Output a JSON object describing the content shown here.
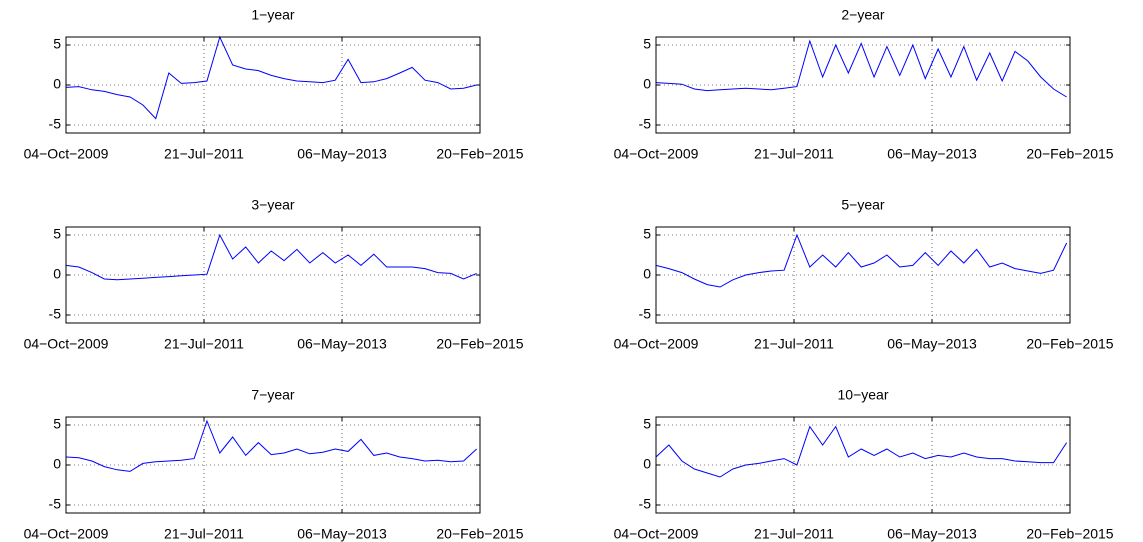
{
  "chart_data": [
    {
      "type": "line",
      "title": "1−year",
      "color": "#0000ff",
      "grid": true,
      "xlim": [
        "2009-10-04",
        "2015-02-20"
      ],
      "ylim": [
        -6,
        6
      ],
      "yticks": [
        -5,
        0,
        5
      ],
      "xticks": [
        {
          "value": "2009-10-04",
          "label": "04−Oct−2009"
        },
        {
          "value": "2011-07-21",
          "label": "21−Jul−2011"
        },
        {
          "value": "2013-05-06",
          "label": "06−May−2013"
        },
        {
          "value": "2015-02-20",
          "label": "20−Feb−2015"
        }
      ],
      "x": [
        "2009-10-04",
        "2009-12-04",
        "2010-02-04",
        "2010-04-04",
        "2010-06-04",
        "2010-08-04",
        "2010-10-04",
        "2010-12-04",
        "2011-02-04",
        "2011-04-04",
        "2011-06-04",
        "2011-08-04",
        "2011-10-04",
        "2011-12-04",
        "2012-02-04",
        "2012-04-04",
        "2012-06-04",
        "2012-08-04",
        "2012-10-04",
        "2012-12-04",
        "2013-02-04",
        "2013-04-04",
        "2013-06-04",
        "2013-08-04",
        "2013-10-04",
        "2013-12-04",
        "2014-02-04",
        "2014-04-04",
        "2014-06-04",
        "2014-08-04",
        "2014-10-04",
        "2014-12-04",
        "2015-02-04"
      ],
      "values": [
        -0.3,
        -0.2,
        -0.6,
        -0.8,
        -1.2,
        -1.5,
        -2.5,
        -4.2,
        1.5,
        0.2,
        0.3,
        0.5,
        6,
        2.5,
        2,
        1.8,
        1.2,
        0.8,
        0.5,
        0.4,
        0.3,
        0.6,
        3.2,
        0.3,
        0.4,
        0.8,
        1.5,
        2.2,
        0.6,
        0.3,
        -0.5,
        -0.4,
        0
      ]
    },
    {
      "type": "line",
      "title": "2−year",
      "color": "#0000ff",
      "grid": true,
      "xlim": [
        "2009-10-04",
        "2015-02-20"
      ],
      "ylim": [
        -6,
        6
      ],
      "yticks": [
        -5,
        0,
        5
      ],
      "xticks": [
        {
          "value": "2009-10-04",
          "label": "04−Oct−2009"
        },
        {
          "value": "2011-07-21",
          "label": "21−Jul−2011"
        },
        {
          "value": "2013-05-06",
          "label": "06−May−2013"
        },
        {
          "value": "2015-02-20",
          "label": "20−Feb−2015"
        }
      ],
      "x": [
        "2009-10-04",
        "2009-12-04",
        "2010-02-04",
        "2010-04-04",
        "2010-06-04",
        "2010-08-04",
        "2010-10-04",
        "2010-12-04",
        "2011-02-04",
        "2011-04-04",
        "2011-06-04",
        "2011-08-04",
        "2011-10-04",
        "2011-12-04",
        "2012-02-04",
        "2012-04-04",
        "2012-06-04",
        "2012-08-04",
        "2012-10-04",
        "2012-12-04",
        "2013-02-04",
        "2013-04-04",
        "2013-06-04",
        "2013-08-04",
        "2013-10-04",
        "2013-12-04",
        "2014-02-04",
        "2014-04-04",
        "2014-06-04",
        "2014-08-04",
        "2014-10-04",
        "2014-12-04",
        "2015-02-04"
      ],
      "values": [
        0.3,
        0.2,
        0.1,
        -0.5,
        -0.7,
        -0.6,
        -0.5,
        -0.4,
        -0.5,
        -0.6,
        -0.4,
        -0.2,
        5.5,
        1,
        5,
        1.5,
        5.2,
        1,
        4.8,
        1.2,
        5,
        0.8,
        4.5,
        1,
        4.8,
        0.6,
        4,
        0.5,
        4.2,
        3,
        1,
        -0.5,
        -1.5
      ]
    },
    {
      "type": "line",
      "title": "3−year",
      "color": "#0000ff",
      "grid": true,
      "xlim": [
        "2009-10-04",
        "2015-02-20"
      ],
      "ylim": [
        -6,
        6
      ],
      "yticks": [
        -5,
        0,
        5
      ],
      "xticks": [
        {
          "value": "2009-10-04",
          "label": "04−Oct−2009"
        },
        {
          "value": "2011-07-21",
          "label": "21−Jul−2011"
        },
        {
          "value": "2013-05-06",
          "label": "06−May−2013"
        },
        {
          "value": "2015-02-20",
          "label": "20−Feb−2015"
        }
      ],
      "x": [
        "2009-10-04",
        "2009-12-04",
        "2010-02-04",
        "2010-04-04",
        "2010-06-04",
        "2010-08-04",
        "2010-10-04",
        "2010-12-04",
        "2011-02-04",
        "2011-04-04",
        "2011-06-04",
        "2011-08-04",
        "2011-10-04",
        "2011-12-04",
        "2012-02-04",
        "2012-04-04",
        "2012-06-04",
        "2012-08-04",
        "2012-10-04",
        "2012-12-04",
        "2013-02-04",
        "2013-04-04",
        "2013-06-04",
        "2013-08-04",
        "2013-10-04",
        "2013-12-04",
        "2014-02-04",
        "2014-04-04",
        "2014-06-04",
        "2014-08-04",
        "2014-10-04",
        "2014-12-04",
        "2015-02-04"
      ],
      "values": [
        1.2,
        1,
        0.3,
        -0.5,
        -0.6,
        -0.5,
        -0.4,
        -0.3,
        -0.2,
        -0.1,
        0,
        0.1,
        5,
        2,
        3.5,
        1.5,
        3,
        1.8,
        3.2,
        1.5,
        2.8,
        1.5,
        2.5,
        1.2,
        2.6,
        1,
        1,
        1,
        0.8,
        0.3,
        0.2,
        -0.5,
        0.2
      ]
    },
    {
      "type": "line",
      "title": "5−year",
      "color": "#0000ff",
      "grid": true,
      "xlim": [
        "2009-10-04",
        "2015-02-20"
      ],
      "ylim": [
        -6,
        6
      ],
      "yticks": [
        -5,
        0,
        5
      ],
      "xticks": [
        {
          "value": "2009-10-04",
          "label": "04−Oct−2009"
        },
        {
          "value": "2011-07-21",
          "label": "21−Jul−2011"
        },
        {
          "value": "2013-05-06",
          "label": "06−May−2013"
        },
        {
          "value": "2015-02-20",
          "label": "20−Feb−2015"
        }
      ],
      "x": [
        "2009-10-04",
        "2009-12-04",
        "2010-02-04",
        "2010-04-04",
        "2010-06-04",
        "2010-08-04",
        "2010-10-04",
        "2010-12-04",
        "2011-02-04",
        "2011-04-04",
        "2011-06-04",
        "2011-08-04",
        "2011-10-04",
        "2011-12-04",
        "2012-02-04",
        "2012-04-04",
        "2012-06-04",
        "2012-08-04",
        "2012-10-04",
        "2012-12-04",
        "2013-02-04",
        "2013-04-04",
        "2013-06-04",
        "2013-08-04",
        "2013-10-04",
        "2013-12-04",
        "2014-02-04",
        "2014-04-04",
        "2014-06-04",
        "2014-08-04",
        "2014-10-04",
        "2014-12-04",
        "2015-02-04"
      ],
      "values": [
        1.2,
        0.8,
        0.3,
        -0.5,
        -1.2,
        -1.5,
        -0.6,
        0,
        0.3,
        0.5,
        0.6,
        5,
        1,
        2.5,
        1,
        2.8,
        1,
        1.5,
        2.5,
        1,
        1.2,
        2.8,
        1.2,
        3,
        1.5,
        3.2,
        1,
        1.5,
        0.8,
        0.5,
        0.2,
        0.6,
        4
      ]
    },
    {
      "type": "line",
      "title": "7−year",
      "color": "#0000ff",
      "grid": true,
      "xlim": [
        "2009-10-04",
        "2015-02-20"
      ],
      "ylim": [
        -6,
        6
      ],
      "yticks": [
        -5,
        0,
        5
      ],
      "xticks": [
        {
          "value": "2009-10-04",
          "label": "04−Oct−2009"
        },
        {
          "value": "2011-07-21",
          "label": "21−Jul−2011"
        },
        {
          "value": "2013-05-06",
          "label": "06−May−2013"
        },
        {
          "value": "2015-02-20",
          "label": "20−Feb−2015"
        }
      ],
      "x": [
        "2009-10-04",
        "2009-12-04",
        "2010-02-04",
        "2010-04-04",
        "2010-06-04",
        "2010-08-04",
        "2010-10-04",
        "2010-12-04",
        "2011-02-04",
        "2011-04-04",
        "2011-06-04",
        "2011-08-04",
        "2011-10-04",
        "2011-12-04",
        "2012-02-04",
        "2012-04-04",
        "2012-06-04",
        "2012-08-04",
        "2012-10-04",
        "2012-12-04",
        "2013-02-04",
        "2013-04-04",
        "2013-06-04",
        "2013-08-04",
        "2013-10-04",
        "2013-12-04",
        "2014-02-04",
        "2014-04-04",
        "2014-06-04",
        "2014-08-04",
        "2014-10-04",
        "2014-12-04",
        "2015-02-04"
      ],
      "values": [
        1,
        0.9,
        0.5,
        -0.2,
        -0.6,
        -0.8,
        0.2,
        0.4,
        0.5,
        0.6,
        0.8,
        5.5,
        1.5,
        3.5,
        1.2,
        2.8,
        1.3,
        1.5,
        2,
        1.4,
        1.6,
        2,
        1.7,
        3.2,
        1.2,
        1.5,
        1,
        0.8,
        0.5,
        0.6,
        0.4,
        0.5,
        2
      ]
    },
    {
      "type": "line",
      "title": "10−year",
      "color": "#0000ff",
      "grid": true,
      "xlim": [
        "2009-10-04",
        "2015-02-20"
      ],
      "ylim": [
        -6,
        6
      ],
      "yticks": [
        -5,
        0,
        5
      ],
      "xticks": [
        {
          "value": "2009-10-04",
          "label": "04−Oct−2009"
        },
        {
          "value": "2011-07-21",
          "label": "21−Jul−2011"
        },
        {
          "value": "2013-05-06",
          "label": "06−May−2013"
        },
        {
          "value": "2015-02-20",
          "label": "20−Feb−2015"
        }
      ],
      "x": [
        "2009-10-04",
        "2009-12-04",
        "2010-02-04",
        "2010-04-04",
        "2010-06-04",
        "2010-08-04",
        "2010-10-04",
        "2010-12-04",
        "2011-02-04",
        "2011-04-04",
        "2011-06-04",
        "2011-08-04",
        "2011-10-04",
        "2011-12-04",
        "2012-02-04",
        "2012-04-04",
        "2012-06-04",
        "2012-08-04",
        "2012-10-04",
        "2012-12-04",
        "2013-02-04",
        "2013-04-04",
        "2013-06-04",
        "2013-08-04",
        "2013-10-04",
        "2013-12-04",
        "2014-02-04",
        "2014-04-04",
        "2014-06-04",
        "2014-08-04",
        "2014-10-04",
        "2014-12-04",
        "2015-02-04"
      ],
      "values": [
        1,
        2.5,
        0.5,
        -0.5,
        -1,
        -1.5,
        -0.5,
        0,
        0.2,
        0.5,
        0.8,
        0,
        4.8,
        2.5,
        4.8,
        1,
        2,
        1.2,
        2,
        1,
        1.5,
        0.8,
        1.2,
        1,
        1.5,
        1,
        0.8,
        0.8,
        0.5,
        0.4,
        0.3,
        0.3,
        2.8
      ]
    }
  ]
}
